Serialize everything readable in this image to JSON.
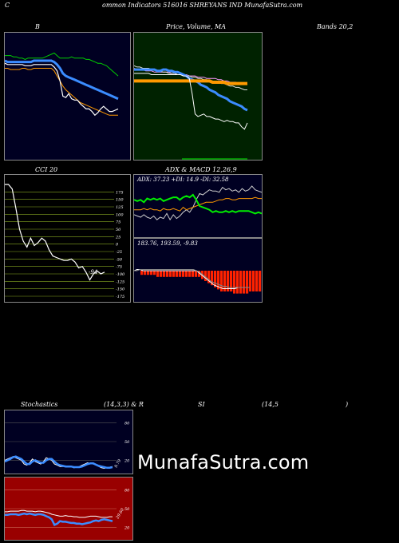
{
  "header": {
    "c": "C",
    "title": "ommon Indicators 516016 SHREYANS IND MunafaSutra.com"
  },
  "titles": {
    "bollinger": "B",
    "price_ma": "Price, Volume, MA",
    "bands": "Bands 20,2",
    "cci": "CCI 20",
    "adx_macd": "ADX & MACD 12,26,9",
    "stoch_label": "Stochastics",
    "stoch_params": "(14,3,3) & R",
    "rsi_label": "SI",
    "rsi_params": "(14,5",
    "rsi_close": ")"
  },
  "adx": {
    "text": "ADX: 37.23 +DI: 14.9 -DI: 32.58"
  },
  "macd": {
    "text": "183.76, 193.59, -9.83"
  },
  "watermark": "MunafaSutra.com",
  "colors": {
    "dark_bg": "#000022",
    "green_bg": "#002200",
    "cci_bg": "#000000",
    "rsi_bg": "#990000",
    "blue": "#3b8cff",
    "orange": "#ff9900",
    "green_line": "#00cc00",
    "bright_green": "#00ee00",
    "gridline": "#88aa22",
    "red_bar": "#ff2200"
  },
  "chart_data": [
    {
      "type": "line",
      "name": "bollinger",
      "x": [
        0,
        1,
        2,
        3,
        4,
        5,
        6,
        7,
        8,
        9,
        10,
        11,
        12,
        13,
        14,
        15,
        16,
        17,
        18,
        19,
        20,
        21,
        22,
        23,
        24,
        25,
        26,
        27,
        28,
        29,
        30,
        31,
        32,
        33,
        34,
        35,
        36,
        37,
        38,
        39
      ],
      "series": [
        {
          "values": [
            82,
            82,
            82,
            81,
            81,
            80,
            80,
            79,
            80,
            80,
            80,
            80,
            80,
            80,
            81,
            82,
            83,
            84,
            82,
            80,
            80,
            80,
            80,
            81,
            80,
            80,
            80,
            80,
            79,
            79,
            78,
            77,
            76,
            76,
            75,
            74,
            72,
            70,
            68,
            66
          ]
        },
        {
          "values": [
            78,
            77,
            77,
            77,
            77,
            77,
            77,
            77,
            77,
            77,
            78,
            78,
            78,
            78,
            78,
            78,
            78,
            77,
            75,
            72,
            68,
            66,
            65,
            64,
            63,
            62,
            61,
            60,
            59,
            58,
            57,
            56,
            55,
            54,
            53,
            52,
            51,
            50,
            49,
            48
          ]
        },
        {
          "values": [
            72,
            72,
            71,
            71,
            71,
            71,
            72,
            72,
            71,
            71,
            72,
            72,
            72,
            72,
            72,
            72,
            72,
            70,
            66,
            62,
            58,
            55,
            53,
            51,
            49,
            47,
            45,
            44,
            43,
            42,
            41,
            40,
            39,
            38,
            37,
            36,
            35,
            35,
            35,
            35
          ]
        },
        {
          "values": [
            76,
            75,
            75,
            75,
            75,
            75,
            75,
            74,
            74,
            74,
            75,
            75,
            75,
            75,
            75,
            75,
            75,
            73,
            70,
            62,
            50,
            49,
            52,
            48,
            47,
            47,
            44,
            42,
            40,
            40,
            38,
            35,
            37,
            40,
            42,
            40,
            38,
            38,
            39,
            40
          ]
        }
      ]
    },
    {
      "type": "line",
      "name": "price_ma",
      "x": [
        0,
        1,
        2,
        3,
        4,
        5,
        6,
        7,
        8,
        9,
        10,
        11,
        12,
        13,
        14,
        15,
        16,
        17,
        18,
        19,
        20,
        21,
        22,
        23,
        24,
        25,
        26,
        27,
        28,
        29,
        30,
        31,
        32,
        33,
        34,
        35,
        36,
        37,
        38,
        39
      ],
      "series": [
        {
          "values": [
            72,
            71,
            71,
            71,
            70,
            70,
            70,
            69,
            69,
            69,
            69,
            69,
            69,
            68,
            68,
            67,
            67,
            67,
            67,
            66,
            66,
            66,
            65,
            65,
            65,
            64,
            64,
            64,
            64,
            63,
            63,
            62,
            62,
            61,
            61,
            61,
            60,
            60,
            60,
            59
          ]
        },
        {
          "values": [
            74,
            73,
            73,
            72,
            72,
            72,
            71,
            71,
            70,
            70,
            69,
            69,
            68,
            68,
            68,
            67,
            67,
            66,
            66,
            66,
            65,
            65,
            64,
            64,
            63,
            63,
            62,
            62,
            61,
            61,
            60,
            60,
            59,
            58,
            58,
            57,
            57,
            56,
            55,
            55
          ]
        },
        {
          "values": [
            71,
            71,
            71,
            71,
            71,
            71,
            71,
            71,
            70,
            70,
            71,
            71,
            70,
            70,
            69,
            69,
            68,
            67,
            66,
            64,
            63,
            62,
            61,
            59,
            58,
            57,
            55,
            54,
            53,
            51,
            50,
            49,
            48,
            46,
            45,
            44,
            43,
            42,
            40,
            39
          ]
        },
        {
          "values": [
            62,
            62,
            62,
            62,
            62,
            62,
            62,
            62,
            62,
            62,
            62,
            62,
            62,
            62,
            62,
            62,
            62,
            62,
            62,
            62,
            62,
            62,
            62,
            62,
            62,
            62,
            62,
            61,
            61,
            61,
            61,
            61,
            60,
            60,
            60,
            60,
            60,
            60,
            60,
            60
          ]
        },
        {
          "values": [
            68,
            68,
            68,
            68,
            68,
            68,
            67,
            67,
            67,
            67,
            67,
            67,
            67,
            67,
            67,
            67,
            67,
            66,
            66,
            64,
            52,
            36,
            34,
            35,
            36,
            34,
            34,
            33,
            32,
            32,
            31,
            30,
            31,
            30,
            30,
            29,
            29,
            26,
            24,
            29
          ]
        }
      ]
    },
    {
      "type": "line",
      "name": "cci",
      "x": [
        0,
        1,
        2,
        3,
        4,
        5,
        6,
        7,
        8,
        9,
        10,
        11,
        12,
        13,
        14,
        15,
        16,
        17,
        18,
        19,
        20,
        21,
        22,
        23,
        24,
        25,
        26,
        27
      ],
      "values": [
        200,
        200,
        185,
        120,
        50,
        10,
        -10,
        20,
        -5,
        5,
        20,
        10,
        -20,
        -40,
        -45,
        -50,
        -55,
        -55,
        -50,
        -60,
        -80,
        -75,
        -95,
        -120,
        -100,
        -90,
        -100,
        -94
      ],
      "ylim": [
        -175,
        200
      ],
      "ticks": [
        175,
        150,
        125,
        100,
        75,
        50,
        25,
        0,
        -25,
        -50,
        -75,
        -100,
        -125,
        -150,
        -175
      ],
      "last_label": "-94"
    },
    {
      "type": "line",
      "name": "adx",
      "series": [
        {
          "values": [
            18,
            17,
            16,
            18,
            16,
            15,
            17,
            14,
            16,
            15,
            19,
            14,
            18,
            15,
            17,
            20,
            22,
            20,
            24,
            30,
            35,
            34,
            36,
            38,
            37,
            37,
            36,
            40,
            38,
            39,
            37,
            38,
            36,
            39,
            37,
            38,
            41,
            38,
            37,
            36
          ]
        },
        {
          "values": [
            22,
            22,
            22,
            23,
            22,
            23,
            22,
            22,
            21,
            23,
            22,
            22,
            23,
            22,
            21,
            24,
            22,
            23,
            24,
            25,
            26,
            27,
            28,
            28,
            28,
            29,
            30,
            30,
            31,
            31,
            30,
            30,
            31,
            31,
            31,
            31,
            31,
            32,
            31,
            31
          ]
        },
        {
          "values": [
            30,
            29,
            30,
            28,
            31,
            30,
            31,
            30,
            31,
            29,
            30,
            31,
            32,
            32,
            30,
            32,
            33,
            32,
            34,
            30,
            25,
            24,
            23,
            22,
            20,
            21,
            20,
            20,
            21,
            20,
            21,
            20,
            21,
            21,
            21,
            21,
            20,
            19,
            20,
            19
          ]
        }
      ]
    },
    {
      "type": "bar",
      "name": "macd",
      "values": [
        0,
        0,
        -2,
        -2,
        -2,
        -2,
        -2,
        -3,
        -3,
        -3,
        -3,
        -3,
        -3,
        -3,
        -3,
        -3,
        -3,
        -3,
        -3,
        -3,
        -3,
        -4,
        -5,
        -6,
        -7,
        -8,
        -9,
        -10,
        -10,
        -10,
        -10,
        -11,
        -11,
        -11,
        -11,
        -11,
        -10,
        -10,
        -10,
        -10
      ],
      "lines": [
        {
          "values": [
            0,
            1,
            1,
            0,
            0,
            0,
            0,
            0,
            0,
            0,
            0,
            0,
            0,
            0,
            0,
            0,
            0,
            0,
            0,
            0,
            0,
            0,
            -2,
            -4,
            -6,
            -8,
            -10,
            -12,
            -13,
            -14,
            -15,
            -15,
            -15,
            -15,
            -15,
            -14,
            -14,
            -14,
            -14,
            -14
          ]
        },
        {
          "values": [
            0,
            0,
            1,
            1,
            1,
            1,
            1,
            1,
            1,
            1,
            1,
            1,
            1,
            1,
            1,
            1,
            1,
            1,
            1,
            1,
            1,
            0,
            -1,
            -3,
            -5,
            -7,
            -9,
            -10,
            -11,
            -12,
            -13,
            -13,
            -14,
            -14,
            -14,
            -14,
            -14,
            -14,
            -14,
            -14
          ]
        }
      ]
    },
    {
      "type": "line",
      "name": "stochastics",
      "ticks": [
        80,
        50,
        20
      ],
      "last_label": "9.79",
      "series": [
        {
          "values": [
            20,
            22,
            24,
            26,
            24,
            22,
            20,
            14,
            12,
            16,
            22,
            18,
            16,
            14,
            18,
            24,
            22,
            20,
            14,
            12,
            10,
            10,
            11,
            10,
            10,
            8,
            9,
            10,
            12,
            14,
            16,
            15,
            14,
            12,
            10,
            8,
            7,
            8,
            9,
            10
          ]
        },
        {
          "values": [
            18,
            20,
            22,
            25,
            26,
            24,
            22,
            18,
            14,
            14,
            18,
            20,
            18,
            16,
            16,
            20,
            22,
            22,
            18,
            14,
            12,
            11,
            10,
            10,
            10,
            9,
            9,
            9,
            10,
            12,
            14,
            15,
            15,
            13,
            11,
            10,
            9,
            8,
            8,
            9
          ]
        }
      ]
    },
    {
      "type": "line",
      "name": "rsi",
      "ticks": [
        80,
        50,
        20
      ],
      "last_label": "29.60",
      "series": [
        {
          "values": [
            45,
            45,
            46,
            46,
            46,
            46,
            47,
            47,
            46,
            46,
            46,
            45,
            46,
            46,
            45,
            44,
            43,
            41,
            40,
            39,
            38,
            38,
            39,
            38,
            38,
            37,
            37,
            36,
            36,
            36,
            37,
            38,
            38,
            38,
            37,
            36,
            36,
            36,
            37,
            37
          ]
        },
        {
          "values": [
            40,
            40,
            41,
            41,
            41,
            40,
            41,
            42,
            41,
            42,
            41,
            40,
            41,
            41,
            40,
            38,
            36,
            33,
            24,
            26,
            30,
            29,
            29,
            28,
            27,
            27,
            26,
            26,
            25,
            26,
            27,
            28,
            30,
            31,
            30,
            32,
            33,
            32,
            31,
            30
          ]
        }
      ]
    }
  ]
}
